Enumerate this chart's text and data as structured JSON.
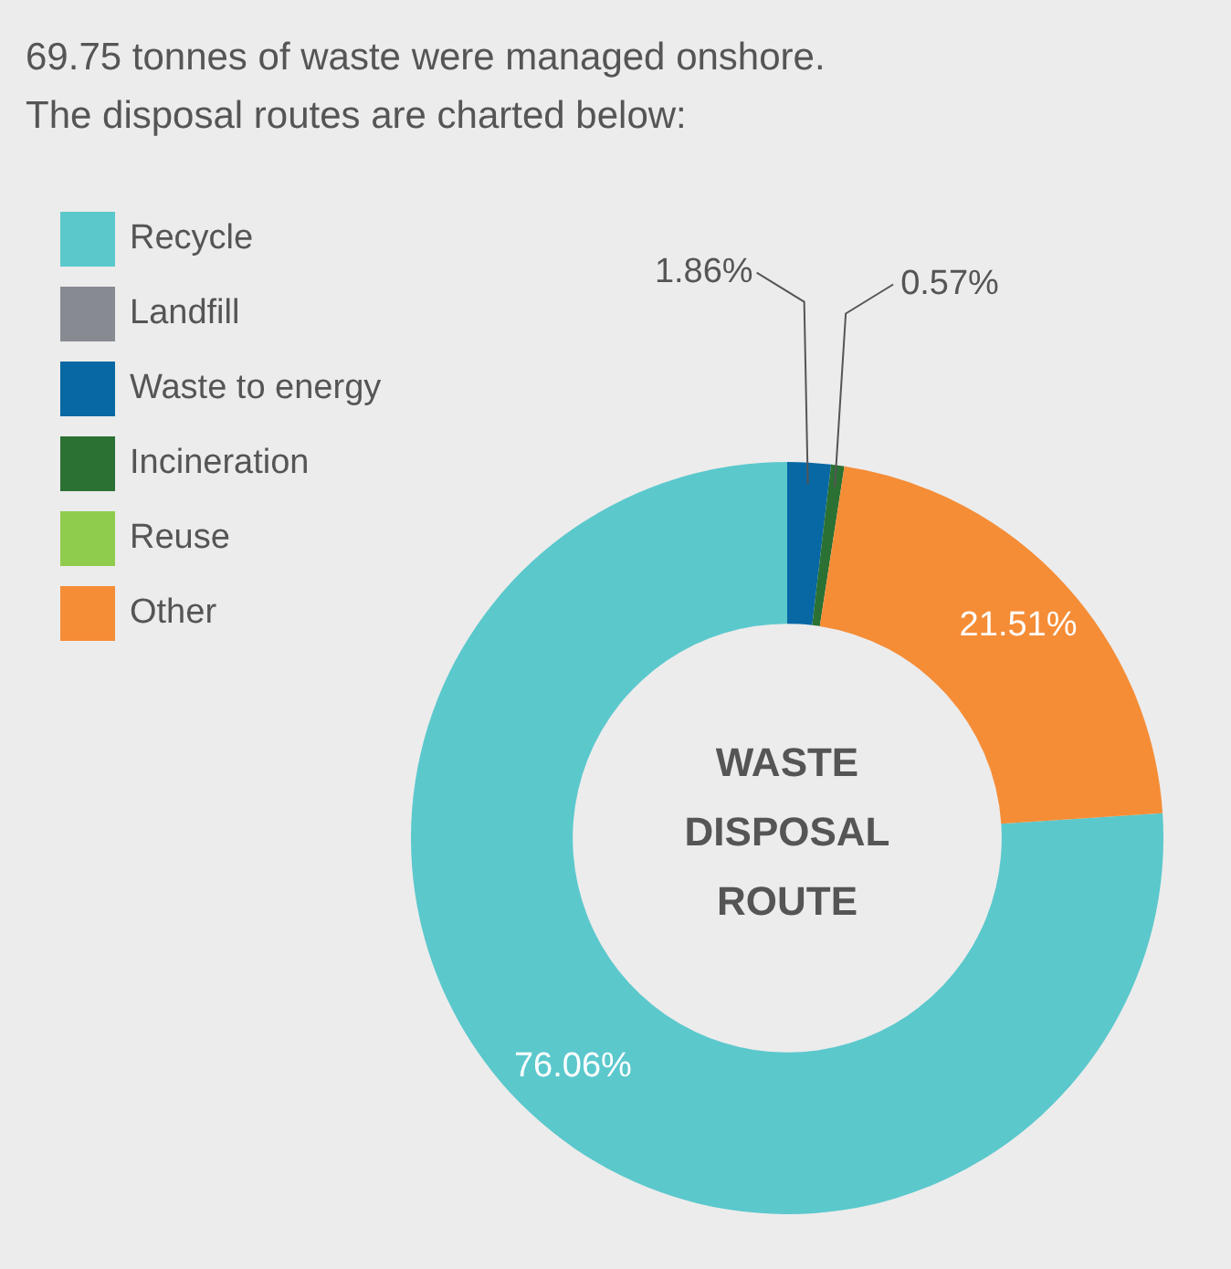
{
  "chart_data": {
    "type": "donut",
    "title": "69.75 tonnes of waste were managed onshore.",
    "subtitle": "The disposal routes are charted below:",
    "categories": [
      "Recycle",
      "Landfill",
      "Waste to energy",
      "Incineration",
      "Reuse",
      "Other"
    ],
    "values": [
      76.06,
      0,
      1.86,
      0.57,
      0,
      21.51
    ],
    "colors": [
      "#5bc8cc",
      "#878a91",
      "#0868a4",
      "#2a7133",
      "#8fcc4e",
      "#f58d37"
    ],
    "value_labels": [
      "76.06%",
      null,
      "1.86%",
      "0.57%",
      null,
      "21.51%"
    ],
    "annotations": [
      "WASTE DISPOSAL ROUTE"
    ],
    "legend": "top left"
  }
}
